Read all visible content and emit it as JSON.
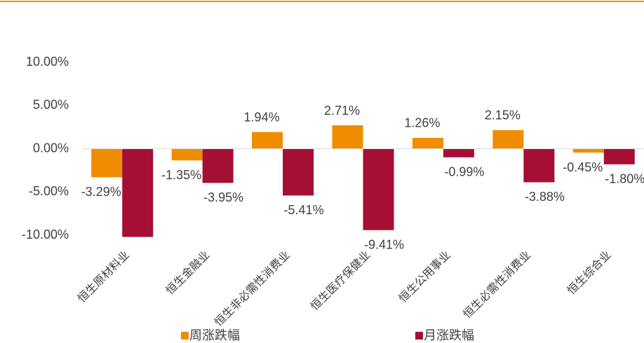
{
  "chart_data": {
    "type": "bar",
    "categories": [
      "恒生原材料业",
      "恒生金融业",
      "恒生非必需性消费业",
      "恒生医疗保健业",
      "恒生公用事业",
      "恒生必需性消费业",
      "恒生综合业"
    ],
    "series": [
      {
        "name": "周涨跌幅",
        "color": "#f08c00",
        "values": [
          -3.29,
          -1.35,
          1.94,
          2.71,
          1.26,
          2.15,
          -0.45
        ],
        "value_labels": [
          "-3.29%",
          "-1.35%",
          "1.94%",
          "2.71%",
          "1.26%",
          "2.15%",
          "-0.45%"
        ]
      },
      {
        "name": "月涨跌幅",
        "color": "#a50f33",
        "values": [
          -10.2,
          -3.95,
          -5.41,
          -9.41,
          -0.99,
          -3.88,
          -1.8
        ],
        "value_labels": [
          null,
          "-3.95%",
          "-5.41%",
          "-9.41%",
          "-0.99%",
          "-3.88%",
          "-1.80%"
        ]
      }
    ],
    "ylim": [
      -10,
      10
    ],
    "yticks": [
      {
        "value": -10,
        "label": "-10.00%"
      },
      {
        "value": -5,
        "label": "-5.00%"
      },
      {
        "value": 0,
        "label": "0.00%"
      },
      {
        "value": 5,
        "label": "5.00%"
      },
      {
        "value": 10,
        "label": "10.00%"
      }
    ],
    "legend": "bottom"
  }
}
